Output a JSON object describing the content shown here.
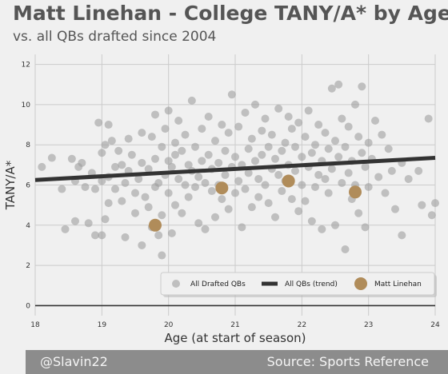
{
  "header": {
    "title": "Matt Linehan - College TANY/A* by Age",
    "subtitle": "vs. all QBs drafted since 2004"
  },
  "footer": {
    "left": "@Slavin22",
    "right": "Source: Sports Reference"
  },
  "colors": {
    "background": "#f0f0f0",
    "grid": "#cbcbcb",
    "scatter": "#9e9e9e",
    "trend": "#333333",
    "highlight": "#b08c5a",
    "footer_bg": "#8c8c8c"
  },
  "chart_data": {
    "type": "scatter",
    "xlabel": "Age (at start of season)",
    "ylabel": "TANY/A*",
    "xlim": [
      18,
      24
    ],
    "ylim": [
      -0.5,
      12.5
    ],
    "x_ticks": [
      18,
      19,
      20,
      21,
      22,
      23,
      24
    ],
    "y_ticks": [
      0,
      2,
      4,
      6,
      8,
      10,
      12
    ],
    "grid": true,
    "legend_position": "bottom-right",
    "series": [
      {
        "name": "All Drafted QBs",
        "kind": "scatter",
        "points": [
          [
            18.1,
            6.9
          ],
          [
            18.25,
            7.35
          ],
          [
            18.4,
            5.8
          ],
          [
            18.45,
            3.8
          ],
          [
            18.55,
            7.3
          ],
          [
            18.6,
            6.2
          ],
          [
            18.6,
            4.2
          ],
          [
            18.65,
            6.9
          ],
          [
            18.7,
            7.1
          ],
          [
            18.75,
            5.9
          ],
          [
            18.8,
            4.1
          ],
          [
            18.85,
            6.6
          ],
          [
            18.9,
            3.5
          ],
          [
            18.9,
            5.8
          ],
          [
            18.95,
            9.1
          ],
          [
            19.0,
            3.5
          ],
          [
            19.0,
            7.6
          ],
          [
            19.0,
            6.2
          ],
          [
            19.05,
            8.0
          ],
          [
            19.05,
            4.3
          ],
          [
            19.1,
            9.0
          ],
          [
            19.1,
            6.4
          ],
          [
            19.1,
            5.1
          ],
          [
            19.15,
            8.2
          ],
          [
            19.2,
            6.9
          ],
          [
            19.2,
            5.8
          ],
          [
            19.25,
            7.7
          ],
          [
            19.3,
            7.0
          ],
          [
            19.3,
            5.2
          ],
          [
            19.35,
            6.1
          ],
          [
            19.35,
            3.4
          ],
          [
            19.4,
            8.3
          ],
          [
            19.4,
            6.7
          ],
          [
            19.45,
            7.5
          ],
          [
            19.5,
            5.6
          ],
          [
            19.5,
            4.6
          ],
          [
            19.55,
            6.3
          ],
          [
            19.6,
            7.1
          ],
          [
            19.6,
            8.6
          ],
          [
            19.6,
            3.0
          ],
          [
            19.65,
            5.4
          ],
          [
            19.7,
            6.8
          ],
          [
            19.7,
            4.9
          ],
          [
            19.75,
            8.4
          ],
          [
            19.75,
            3.9
          ],
          [
            19.8,
            7.3
          ],
          [
            19.8,
            5.9
          ],
          [
            19.8,
            9.5
          ],
          [
            19.85,
            6.1
          ],
          [
            19.85,
            3.5
          ],
          [
            19.9,
            7.9
          ],
          [
            19.9,
            4.5
          ],
          [
            19.9,
            2.5
          ],
          [
            19.95,
            6.5
          ],
          [
            19.95,
            8.8
          ],
          [
            20.0,
            7.2
          ],
          [
            20.0,
            5.6
          ],
          [
            20.0,
            9.7
          ],
          [
            20.05,
            6.9
          ],
          [
            20.05,
            3.6
          ],
          [
            20.1,
            8.1
          ],
          [
            20.1,
            5.0
          ],
          [
            20.1,
            7.5
          ],
          [
            20.15,
            6.3
          ],
          [
            20.15,
            9.2
          ],
          [
            20.2,
            7.7
          ],
          [
            20.2,
            4.6
          ],
          [
            20.25,
            6.0
          ],
          [
            20.25,
            8.5
          ],
          [
            20.3,
            7.0
          ],
          [
            20.3,
            5.4
          ],
          [
            20.35,
            6.7
          ],
          [
            20.35,
            10.2
          ],
          [
            20.4,
            7.9
          ],
          [
            20.4,
            5.9
          ],
          [
            20.45,
            6.4
          ],
          [
            20.45,
            4.1
          ],
          [
            20.5,
            8.8
          ],
          [
            20.5,
            7.2
          ],
          [
            20.55,
            6.1
          ],
          [
            20.55,
            3.8
          ],
          [
            20.6,
            7.5
          ],
          [
            20.6,
            9.4
          ],
          [
            20.65,
            5.7
          ],
          [
            20.65,
            6.8
          ],
          [
            20.7,
            8.2
          ],
          [
            20.7,
            4.4
          ],
          [
            20.75,
            7.1
          ],
          [
            20.75,
            6.0
          ],
          [
            20.8,
            9.0
          ],
          [
            20.8,
            5.3
          ],
          [
            20.85,
            7.7
          ],
          [
            20.85,
            6.5
          ],
          [
            20.9,
            8.6
          ],
          [
            20.9,
            4.8
          ],
          [
            20.95,
            6.9
          ],
          [
            20.95,
            10.5
          ],
          [
            21.0,
            7.4
          ],
          [
            21.0,
            5.6
          ],
          [
            21.05,
            8.9
          ],
          [
            21.05,
            6.2
          ],
          [
            21.1,
            7.0
          ],
          [
            21.1,
            3.9
          ],
          [
            21.15,
            9.6
          ],
          [
            21.15,
            5.8
          ],
          [
            21.2,
            7.8
          ],
          [
            21.2,
            6.6
          ],
          [
            21.25,
            8.3
          ],
          [
            21.25,
            4.9
          ],
          [
            21.3,
            7.2
          ],
          [
            21.3,
            10.0
          ],
          [
            21.35,
            6.3
          ],
          [
            21.35,
            5.4
          ],
          [
            21.4,
            8.7
          ],
          [
            21.4,
            7.5
          ],
          [
            21.45,
            6.0
          ],
          [
            21.45,
            9.3
          ],
          [
            21.5,
            7.9
          ],
          [
            21.5,
            5.1
          ],
          [
            21.55,
            6.8
          ],
          [
            21.55,
            8.5
          ],
          [
            21.6,
            7.3
          ],
          [
            21.6,
            4.4
          ],
          [
            21.65,
            9.8
          ],
          [
            21.65,
            6.5
          ],
          [
            21.7,
            7.7
          ],
          [
            21.7,
            5.7
          ],
          [
            21.75,
            8.1
          ],
          [
            21.75,
            6.2
          ],
          [
            21.8,
            9.4
          ],
          [
            21.8,
            7.0
          ],
          [
            21.85,
            5.3
          ],
          [
            21.85,
            8.8
          ],
          [
            21.9,
            6.7
          ],
          [
            21.9,
            7.9
          ],
          [
            21.95,
            4.7
          ],
          [
            21.95,
            9.1
          ],
          [
            22.0,
            7.4
          ],
          [
            22.0,
            6.0
          ],
          [
            22.05,
            8.4
          ],
          [
            22.05,
            5.2
          ],
          [
            22.1,
            6.9
          ],
          [
            22.1,
            9.7
          ],
          [
            22.15,
            7.6
          ],
          [
            22.15,
            4.2
          ],
          [
            22.2,
            8.0
          ],
          [
            22.2,
            5.9
          ],
          [
            22.25,
            6.5
          ],
          [
            22.25,
            9.0
          ],
          [
            22.3,
            7.2
          ],
          [
            22.3,
            3.8
          ],
          [
            22.35,
            8.6
          ],
          [
            22.35,
            6.3
          ],
          [
            22.4,
            7.8
          ],
          [
            22.4,
            5.6
          ],
          [
            22.45,
            10.8
          ],
          [
            22.45,
            6.8
          ],
          [
            22.5,
            8.2
          ],
          [
            22.5,
            4.0
          ],
          [
            22.55,
            7.4
          ],
          [
            22.55,
            11.0
          ],
          [
            22.6,
            6.1
          ],
          [
            22.6,
            9.3
          ],
          [
            22.65,
            7.9
          ],
          [
            22.65,
            2.8
          ],
          [
            22.7,
            6.6
          ],
          [
            22.7,
            8.9
          ],
          [
            22.75,
            5.3
          ],
          [
            22.75,
            7.2
          ],
          [
            22.8,
            10.0
          ],
          [
            22.8,
            6.0
          ],
          [
            22.85,
            8.4
          ],
          [
            22.85,
            4.6
          ],
          [
            22.9,
            7.6
          ],
          [
            22.9,
            10.9
          ],
          [
            22.95,
            6.9
          ],
          [
            22.95,
            3.9
          ],
          [
            23.0,
            8.1
          ],
          [
            23.0,
            5.9
          ],
          [
            23.05,
            7.3
          ],
          [
            23.1,
            9.2
          ],
          [
            23.15,
            6.4
          ],
          [
            23.2,
            8.5
          ],
          [
            23.25,
            5.6
          ],
          [
            23.3,
            7.8
          ],
          [
            23.35,
            6.7
          ],
          [
            23.4,
            4.8
          ],
          [
            23.5,
            7.1
          ],
          [
            23.5,
            3.5
          ],
          [
            23.6,
            6.3
          ],
          [
            23.75,
            6.7
          ],
          [
            23.8,
            5.0
          ],
          [
            23.9,
            9.3
          ],
          [
            23.95,
            4.5
          ],
          [
            24.0,
            5.1
          ]
        ]
      },
      {
        "name": "All QBs (trend)",
        "kind": "line",
        "points": [
          [
            18.0,
            6.25
          ],
          [
            24.0,
            7.35
          ]
        ]
      },
      {
        "name": "Matt Linehan",
        "kind": "scatter",
        "points": [
          [
            19.8,
            4.0
          ],
          [
            20.8,
            5.85
          ],
          [
            21.8,
            6.2
          ],
          [
            22.8,
            5.65
          ]
        ]
      }
    ]
  }
}
